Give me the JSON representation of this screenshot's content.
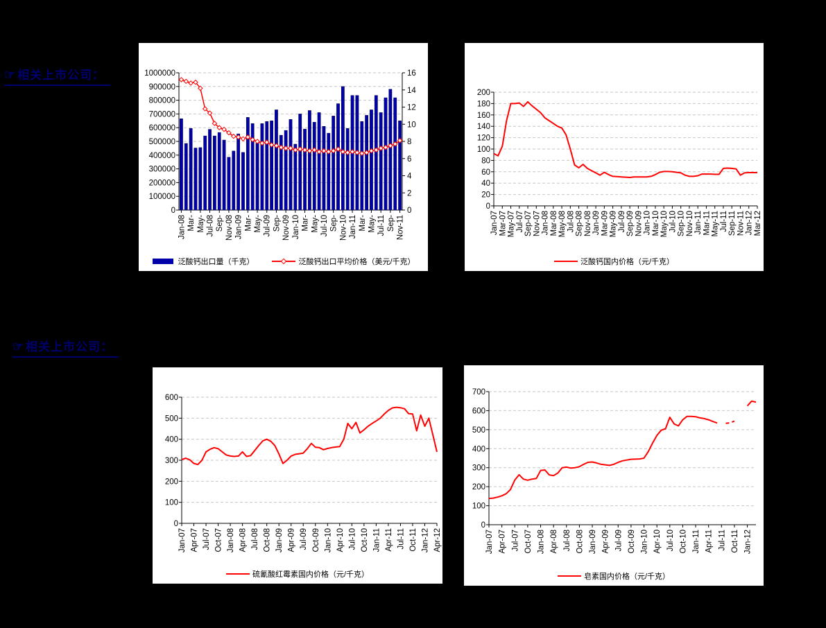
{
  "page": {
    "background": "#000000"
  },
  "sections": [
    {
      "label": "相关上市公司：",
      "icon": "pointing-hand-icon"
    },
    {
      "label": "相关上市公司：",
      "icon": "pointing-hand-icon"
    }
  ],
  "colors": {
    "bar": "#0000a8",
    "line": "#ff0000",
    "grid": "#c6c6c6",
    "axis": "#000000"
  },
  "chart_data": [
    {
      "id": "pantothenate-calcium-export",
      "type": "bar",
      "y_left": {
        "min": 0,
        "max": 1000000,
        "step": 100000
      },
      "y_right": {
        "min": 0,
        "max": 16,
        "step": 2
      },
      "points_per_tick": 2,
      "x_tick_labels": [
        "Jan-08",
        "Mar-",
        "May-",
        "Jul-08",
        "Sep-",
        "Nov-08",
        "Jan-09",
        "Mar-",
        "May-",
        "Jul-09",
        "Sep-",
        "Nov-09",
        "Jan-10",
        "Mar-",
        "May-",
        "Jul-10",
        "Sep-",
        "Nov-10",
        "Jan-11",
        "Mar-",
        "May-",
        "Jul-11",
        "Sep-",
        "Nov-11"
      ],
      "legend_position": "bottom",
      "grid": true,
      "series": [
        {
          "name": "泛酸钙出口量（千克）",
          "kind": "bar",
          "axis": "left",
          "color": "#0000a8",
          "values": [
            665000,
            485000,
            595000,
            452000,
            455000,
            540000,
            588000,
            540000,
            565000,
            510000,
            385000,
            430000,
            555000,
            420000,
            675000,
            630000,
            487000,
            630000,
            645000,
            650000,
            730000,
            545000,
            580000,
            660000,
            480000,
            700000,
            590000,
            725000,
            640000,
            710000,
            610000,
            560000,
            685000,
            775000,
            900000,
            595000,
            835000,
            835000,
            645000,
            690000,
            730000,
            835000,
            710000,
            818000,
            880000,
            818000,
            650000
          ]
        },
        {
          "name": "泛酸钙出口平均价格（美元/千克）",
          "kind": "line",
          "axis": "right",
          "color": "#ff0000",
          "marker": "diamond",
          "stroke_width": 1.5,
          "values": [
            15.2,
            15.0,
            14.8,
            14.9,
            14.2,
            11.8,
            11.3,
            10.1,
            9.6,
            9.4,
            9.0,
            8.6,
            8.5,
            8.3,
            8.5,
            8.2,
            8.0,
            7.8,
            7.9,
            7.6,
            7.5,
            7.3,
            7.2,
            7.2,
            7.0,
            7.1,
            7.0,
            6.9,
            7.0,
            6.8,
            6.9,
            6.8,
            6.9,
            7.1,
            6.8,
            6.7,
            6.8,
            6.7,
            6.6,
            6.7,
            6.9,
            7.0,
            7.2,
            7.3,
            7.5,
            7.7,
            8.1
          ]
        }
      ]
    },
    {
      "id": "pantothenate-calcium-domestic-price",
      "type": "line",
      "y_left": {
        "min": 0,
        "max": 200,
        "step": 20
      },
      "points_per_tick": 2,
      "x_tick_labels": [
        "Jan-07",
        "Mar-07",
        "May-07",
        "Jul-07",
        "Sep-07",
        "Nov-07",
        "Jan-08",
        "Mar-08",
        "May-08",
        "Jul-08",
        "Sep-08",
        "Nov-08",
        "Jan-09",
        "Mar-09",
        "May-09",
        "Jul-09",
        "Sep-09",
        "Nov-09",
        "Jan-10",
        "Mar-10",
        "May-10",
        "Jul-10",
        "Sep-10",
        "Nov-10",
        "Jan-11",
        "Mar-11",
        "May-11",
        "Jul-11",
        "Sep-11",
        "Nov-11",
        "Jan-12",
        "Mar-12"
      ],
      "legend_position": "bottom",
      "grid": true,
      "series": [
        {
          "name": "泛酸钙国内价格（元/千克）",
          "kind": "line",
          "axis": "left",
          "color": "#ff0000",
          "stroke_width": 2,
          "values": [
            92,
            88,
            105,
            150,
            180,
            180,
            181,
            175,
            183,
            176,
            170,
            164,
            155,
            150,
            145,
            140,
            137,
            125,
            100,
            72,
            67,
            73,
            66,
            62,
            58,
            54,
            59,
            55,
            52,
            51.5,
            51,
            50.5,
            50,
            51,
            51,
            51,
            51,
            52,
            55,
            59,
            60.5,
            60.5,
            60,
            59,
            58,
            54,
            52,
            52,
            53,
            56,
            56,
            56,
            55.5,
            55.5,
            66,
            66.5,
            66,
            65,
            54,
            58,
            58.5,
            58.5,
            58.5
          ]
        }
      ]
    },
    {
      "id": "erythromycin-thiocyanate-domestic-price",
      "type": "line",
      "y_left": {
        "min": 0,
        "max": 600,
        "step": 100
      },
      "points_per_tick": 3,
      "x_tick_labels": [
        "Jan-07",
        "Apr-07",
        "Jul-07",
        "Oct-07",
        "Jan-08",
        "Apr-08",
        "Jul-08",
        "Oct-08",
        "Jan-09",
        "Apr-09",
        "Jul-09",
        "Oct-09",
        "Jan-10",
        "Apr-10",
        "Jul-10",
        "Oct-10",
        "Jan-11",
        "Apr-11",
        "Jul-11",
        "Oct-11",
        "Jan-12",
        "Apr-12"
      ],
      "legend_position": "bottom",
      "grid": true,
      "series": [
        {
          "name": "硫氰酸红霉素国内价格（元/千克）",
          "kind": "line",
          "axis": "left",
          "color": "#ff0000",
          "stroke_width": 2,
          "values": [
            303,
            310,
            302,
            285,
            280,
            300,
            340,
            352,
            360,
            355,
            340,
            325,
            320,
            318,
            320,
            340,
            318,
            322,
            345,
            370,
            392,
            400,
            390,
            370,
            330,
            285,
            300,
            320,
            328,
            331,
            334,
            355,
            380,
            362,
            360,
            350,
            356,
            360,
            363,
            365,
            400,
            475,
            450,
            480,
            430,
            445,
            462,
            475,
            487,
            500,
            520,
            537,
            549,
            552,
            550,
            545,
            522,
            520,
            440,
            515,
            462,
            500,
            420,
            340
          ]
        }
      ]
    },
    {
      "id": "saponin-domestic-price",
      "type": "line",
      "y_left": {
        "min": 0,
        "max": 700,
        "step": 100
      },
      "points_per_tick": 3,
      "x_tick_labels": [
        "Jan-07",
        "Apr-07",
        "Jul-07",
        "Oct-07",
        "Jan-08",
        "Apr-08",
        "Jul-08",
        "Oct-08",
        "Jan-09",
        "Apr-09",
        "Jul-09",
        "Oct-09",
        "Jan-10",
        "Apr-10",
        "Jul-10",
        "Oct-10",
        "Jan-11",
        "Apr-11",
        "Jul-11",
        "Oct-11",
        "Jan-12"
      ],
      "legend_position": "bottom",
      "grid": true,
      "series": [
        {
          "name": "皂素国内价格（元/千克）",
          "kind": "line",
          "axis": "left",
          "color": "#ff0000",
          "stroke_width": 2,
          "dashed_segments": [
            1
          ],
          "values": [
            138,
            140,
            145,
            152,
            163,
            185,
            235,
            263,
            240,
            234,
            240,
            243,
            285,
            288,
            262,
            258,
            272,
            300,
            303,
            298,
            300,
            305,
            318,
            328,
            330,
            325,
            318,
            315,
            312,
            318,
            328,
            336,
            340,
            344,
            345,
            346,
            350,
            385,
            430,
            470,
            497,
            505,
            565,
            530,
            520,
            552,
            570,
            570,
            568,
            562,
            558,
            552,
            543,
            535,
            null,
            533,
            536,
            545,
            null,
            null,
            625,
            650,
            645
          ]
        }
      ]
    }
  ]
}
